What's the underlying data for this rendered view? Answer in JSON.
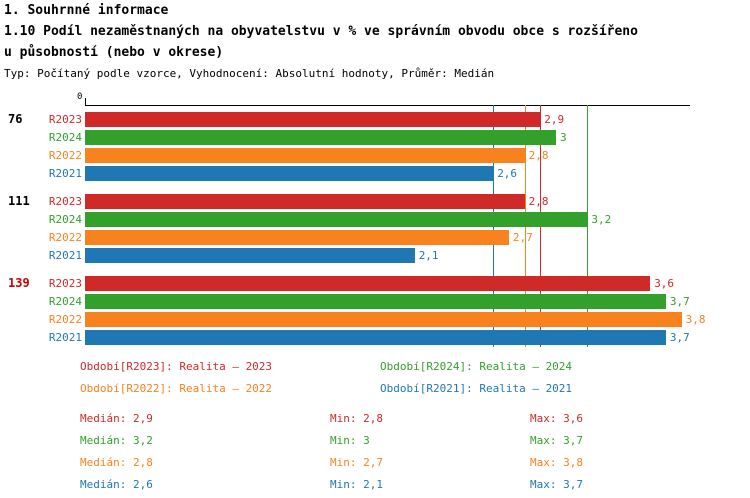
{
  "header": {
    "section_title": "1. Souhrnné informace",
    "title_line1": "1.10 Podíl nezaměstnaných na obyvatelstvu v % ve správním obvodu obce s rozšířeno",
    "title_line2": "u působností (nebo v okrese)",
    "meta": "Typ: Počítaný podle vzorce, Vyhodnocení: Absolutní hodnoty, Průměr: Medián"
  },
  "chart_data": {
    "type": "bar",
    "orientation": "horizontal",
    "x_axis": {
      "zero_label": "0",
      "min": 0,
      "max": 4.0
    },
    "series_order": [
      "R2023",
      "R2024",
      "R2022",
      "R2021"
    ],
    "series_colors": {
      "R2023": "#cf2a27",
      "R2024": "#33a02c",
      "R2022": "#f8821e",
      "R2021": "#1f77b4"
    },
    "groups": [
      {
        "label": "76",
        "label_color": "#000000",
        "values": {
          "R2023": 2.9,
          "R2024": 3.0,
          "R2022": 2.8,
          "R2021": 2.6
        },
        "value_labels": {
          "R2023": "2,9",
          "R2024": "3",
          "R2022": "2,8",
          "R2021": "2,6"
        }
      },
      {
        "label": "111",
        "label_color": "#000000",
        "values": {
          "R2023": 2.8,
          "R2024": 3.2,
          "R2022": 2.7,
          "R2021": 2.1
        },
        "value_labels": {
          "R2023": "2,8",
          "R2024": "3,2",
          "R2022": "2,7",
          "R2021": "2,1"
        }
      },
      {
        "label": "139",
        "label_color": "#cc0000",
        "values": {
          "R2023": 3.6,
          "R2024": 3.7,
          "R2022": 3.8,
          "R2021": 3.7
        },
        "value_labels": {
          "R2023": "3,6",
          "R2024": "3,7",
          "R2022": "3,8",
          "R2021": "3,7"
        }
      }
    ],
    "median_lines": [
      {
        "series": "R2023",
        "value": 2.9
      },
      {
        "series": "R2024",
        "value": 3.2
      },
      {
        "series": "R2022",
        "value": 2.8
      },
      {
        "series": "R2021",
        "value": 2.6
      }
    ]
  },
  "legend": {
    "items": [
      {
        "series": "R2023",
        "label": "Období[R2023]: Realita – 2023",
        "col": 0,
        "row": 0
      },
      {
        "series": "R2024",
        "label": "Období[R2024]: Realita – 2024",
        "col": 1,
        "row": 0
      },
      {
        "series": "R2022",
        "label": "Období[R2022]: Realita – 2022",
        "col": 0,
        "row": 1
      },
      {
        "series": "R2021",
        "label": "Období[R2021]: Realita – 2021",
        "col": 1,
        "row": 1
      }
    ]
  },
  "stats": {
    "rows": [
      {
        "series": "R2023",
        "median": "Medián: 2,9",
        "min": "Min: 2,8",
        "max": "Max: 3,6"
      },
      {
        "series": "R2024",
        "median": "Medián: 3,2",
        "min": "Min: 3",
        "max": "Max: 3,7"
      },
      {
        "series": "R2022",
        "median": "Medián: 2,8",
        "min": "Min: 2,7",
        "max": "Max: 3,8"
      },
      {
        "series": "R2021",
        "median": "Medián: 2,6",
        "min": "Min: 2,1",
        "max": "Max: 3,7"
      }
    ]
  }
}
